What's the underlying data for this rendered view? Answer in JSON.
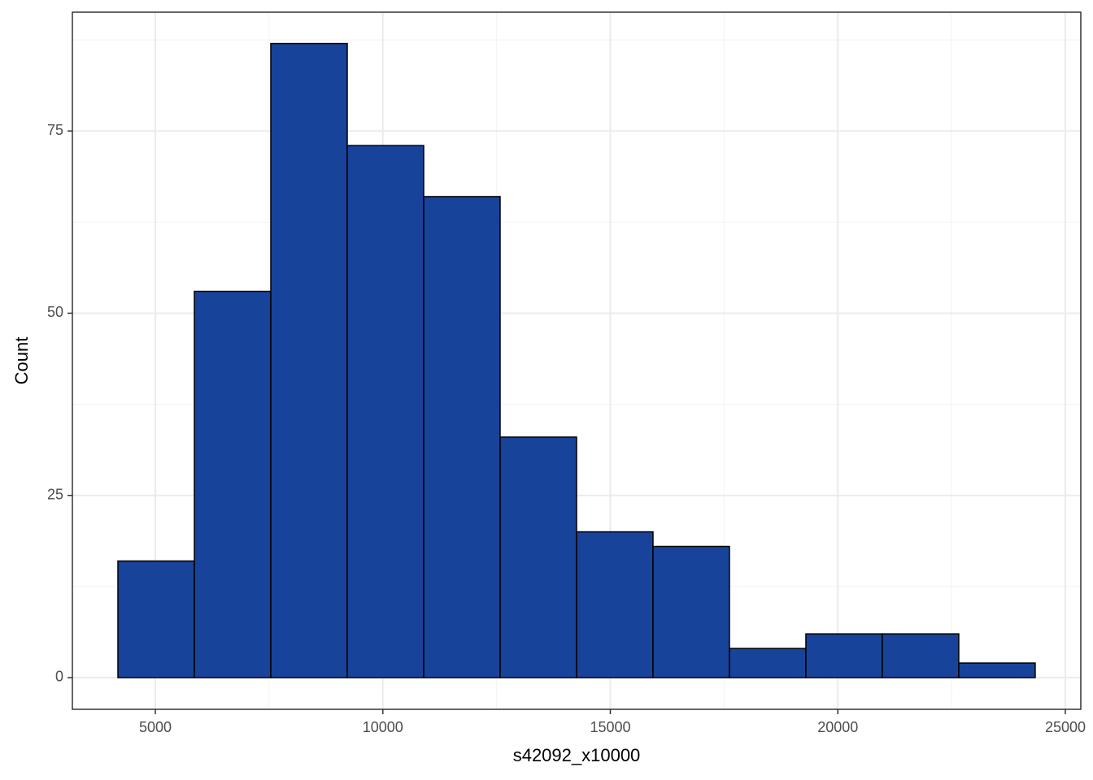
{
  "chart_data": {
    "type": "histogram",
    "x_label": "s42092_x10000",
    "y_label": "Count",
    "bins": [
      4178,
      5858,
      7538,
      9218,
      10898,
      12578,
      14258,
      15938,
      17618,
      19298,
      20978,
      22658,
      24338
    ],
    "values": [
      16,
      53,
      87,
      73,
      66,
      33,
      20,
      18,
      4,
      6,
      6,
      2
    ],
    "color": "#18439a",
    "edge_color": "#000000",
    "xlim": [
      3177,
      25340
    ],
    "xticks": [
      5000,
      10000,
      15000,
      20000,
      25000
    ],
    "ylim": [
      -4.35,
      91.3
    ],
    "yticks": [
      0,
      25,
      50,
      75
    ],
    "grid": true
  }
}
